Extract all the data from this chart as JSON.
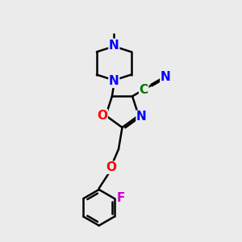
{
  "bg_color": "#ebebeb",
  "bond_color": "#000000",
  "bond_width": 1.8,
  "atom_colors": {
    "N": "#0000ff",
    "O": "#ff0000",
    "F": "#cc00cc",
    "C_green": "#007700"
  },
  "font_size": 11,
  "font_size_small": 9
}
